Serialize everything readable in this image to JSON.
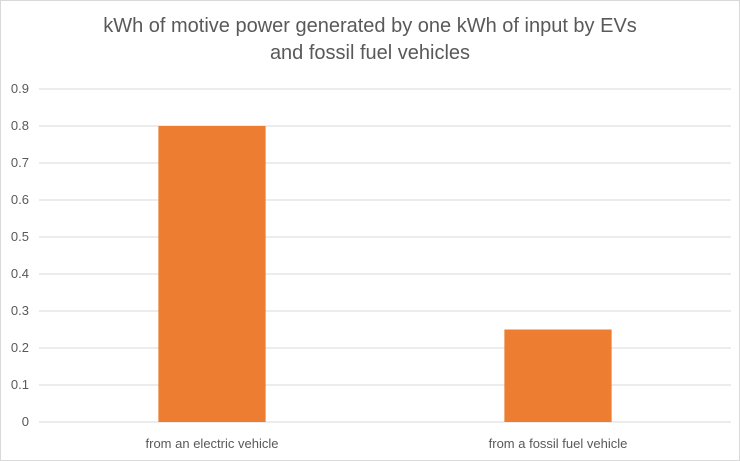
{
  "chart_data": {
    "type": "bar",
    "title": "kWh of motive power generated by one kWh of input by EVs\nand fossil fuel vehicles",
    "categories": [
      "from an electric vehicle",
      "from a fossil fuel vehicle"
    ],
    "values": [
      0.8,
      0.25
    ],
    "yticks": [
      "0",
      "0.1",
      "0.2",
      "0.3",
      "0.4",
      "0.5",
      "0.6",
      "0.7",
      "0.8",
      "0.9"
    ],
    "ylim": [
      0,
      0.9
    ],
    "grid": true,
    "legend": "none",
    "bar_color": "#ed7d31",
    "grid_color": "#d9d9d9",
    "text_color": "#595959"
  }
}
